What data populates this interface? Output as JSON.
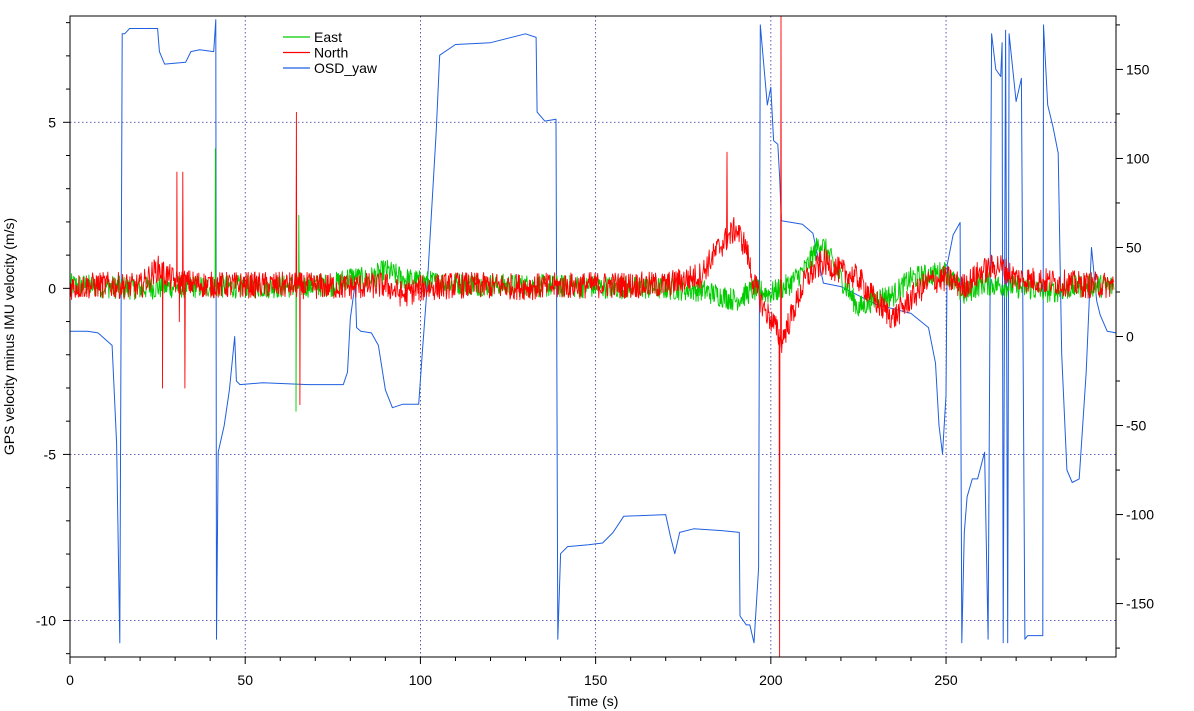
{
  "chart_data": {
    "type": "line",
    "xlabel": "Time (s)",
    "ylabel_left": "GPS velocity minus IMU velocity (m/s)",
    "xlim": [
      0,
      298.5
    ],
    "ylim_left": [
      -11.1,
      8.2
    ],
    "ylim_right": [
      -180,
      180
    ],
    "x_ticks": [
      0,
      50,
      100,
      150,
      200,
      250
    ],
    "y_left_ticks": [
      -10,
      -5,
      0,
      5
    ],
    "y_right_ticks": [
      -150,
      -100,
      -50,
      0,
      50,
      100,
      150
    ],
    "grid": "dotted",
    "legend_position": "top-left",
    "colors": {
      "East": "#00cc00",
      "North": "#ff0000",
      "OSD_yaw": "#1f5fe0"
    },
    "series": [
      {
        "name": "East",
        "axis": "left",
        "noise_amplitude": 0.35,
        "points": [
          [
            0,
            0.1
          ],
          [
            10,
            0.05
          ],
          [
            20,
            0.0
          ],
          [
            30,
            0.05
          ],
          [
            40,
            0.05
          ],
          [
            60,
            0.05
          ],
          [
            75,
            0.1
          ],
          [
            80,
            0.35
          ],
          [
            85,
            0.25
          ],
          [
            90,
            0.55
          ],
          [
            95,
            0.3
          ],
          [
            100,
            0.2
          ],
          [
            120,
            0.1
          ],
          [
            150,
            0.05
          ],
          [
            170,
            0.0
          ],
          [
            180,
            -0.05
          ],
          [
            190,
            -0.35
          ],
          [
            195,
            -0.05
          ],
          [
            200,
            -0.15
          ],
          [
            205,
            0.1
          ],
          [
            210,
            0.6
          ],
          [
            214,
            1.4
          ],
          [
            216,
            1.1
          ],
          [
            220,
            0.3
          ],
          [
            225,
            -0.6
          ],
          [
            230,
            -0.3
          ],
          [
            235,
            -0.2
          ],
          [
            240,
            0.3
          ],
          [
            245,
            0.4
          ],
          [
            250,
            0.5
          ],
          [
            255,
            -0.2
          ],
          [
            260,
            0.15
          ],
          [
            270,
            0.05
          ],
          [
            280,
            -0.1
          ],
          [
            290,
            0.1
          ],
          [
            298,
            0.05
          ]
        ],
        "spikes": [
          [
            41.5,
            4.2
          ],
          [
            64.5,
            -3.7
          ],
          [
            65.3,
            2.2
          ]
        ]
      },
      {
        "name": "North",
        "axis": "left",
        "noise_amplitude": 0.4,
        "points": [
          [
            0,
            0.05
          ],
          [
            10,
            0.1
          ],
          [
            20,
            0.05
          ],
          [
            25,
            0.6
          ],
          [
            30,
            0.2
          ],
          [
            40,
            0.1
          ],
          [
            60,
            0.1
          ],
          [
            80,
            0.05
          ],
          [
            90,
            0.1
          ],
          [
            95,
            -0.2
          ],
          [
            100,
            0.0
          ],
          [
            110,
            0.1
          ],
          [
            130,
            0.05
          ],
          [
            150,
            0.1
          ],
          [
            170,
            0.1
          ],
          [
            180,
            0.4
          ],
          [
            185,
            1.2
          ],
          [
            190,
            1.8
          ],
          [
            193,
            1.2
          ],
          [
            195,
            0.2
          ],
          [
            198,
            -0.6
          ],
          [
            201,
            -1.1
          ],
          [
            203,
            -1.6
          ],
          [
            206,
            -0.8
          ],
          [
            210,
            0.3
          ],
          [
            215,
            0.8
          ],
          [
            220,
            0.5
          ],
          [
            225,
            0.3
          ],
          [
            230,
            -0.4
          ],
          [
            235,
            -0.9
          ],
          [
            240,
            -0.3
          ],
          [
            245,
            0.2
          ],
          [
            250,
            0.3
          ],
          [
            255,
            0.05
          ],
          [
            260,
            0.5
          ],
          [
            265,
            0.7
          ],
          [
            270,
            0.3
          ],
          [
            280,
            0.2
          ],
          [
            290,
            0.1
          ],
          [
            298,
            0.1
          ]
        ],
        "spikes": [
          [
            26.4,
            -3.0
          ],
          [
            30.5,
            3.5
          ],
          [
            31.2,
            -1.0
          ],
          [
            32.2,
            3.5
          ],
          [
            32.8,
            -3.0
          ],
          [
            64.6,
            5.3
          ],
          [
            65.6,
            -3.5
          ],
          [
            187.5,
            4.1
          ],
          [
            202.5,
            -11.1
          ],
          [
            202.9,
            8.2
          ]
        ]
      },
      {
        "name": "OSD_yaw",
        "axis": "right",
        "points": [
          [
            0,
            3
          ],
          [
            5,
            3
          ],
          [
            8,
            2
          ],
          [
            12,
            -5
          ],
          [
            13.3,
            -60
          ],
          [
            14.2,
            -172
          ],
          [
            14.9,
            170
          ],
          [
            15.6,
            170
          ],
          [
            17,
            173
          ],
          [
            25,
            173
          ],
          [
            25.5,
            160
          ],
          [
            27,
            153
          ],
          [
            33,
            154
          ],
          [
            34.5,
            160
          ],
          [
            37,
            161
          ],
          [
            41,
            160
          ],
          [
            41.6,
            178
          ],
          [
            41.8,
            -170
          ],
          [
            42.3,
            -65
          ],
          [
            44,
            -50
          ],
          [
            45.5,
            -30
          ],
          [
            47,
            0
          ],
          [
            47.5,
            -25
          ],
          [
            48.5,
            -27
          ],
          [
            55,
            -26
          ],
          [
            68,
            -27
          ],
          [
            78,
            -27
          ],
          [
            79.2,
            -20
          ],
          [
            80,
            10
          ],
          [
            81.4,
            30
          ],
          [
            81.8,
            5
          ],
          [
            83,
            3
          ],
          [
            86,
            2
          ],
          [
            88,
            -5
          ],
          [
            90,
            -30
          ],
          [
            92,
            -40
          ],
          [
            95,
            -38
          ],
          [
            99.5,
            -38
          ],
          [
            100.5,
            -10
          ],
          [
            102,
            30
          ],
          [
            104.5,
            115
          ],
          [
            105.5,
            158
          ],
          [
            110,
            164
          ],
          [
            120,
            165
          ],
          [
            130,
            170
          ],
          [
            133,
            168
          ],
          [
            133.3,
            126
          ],
          [
            135.5,
            121
          ],
          [
            138.7,
            122
          ],
          [
            139.2,
            -170
          ],
          [
            140,
            -122
          ],
          [
            142,
            -118
          ],
          [
            148,
            -117
          ],
          [
            152,
            -116
          ],
          [
            155,
            -110
          ],
          [
            158,
            -101
          ],
          [
            170,
            -100
          ],
          [
            171.3,
            -112
          ],
          [
            172.6,
            -122
          ],
          [
            174,
            -110
          ],
          [
            178,
            -108
          ],
          [
            186,
            -109
          ],
          [
            191,
            -110
          ],
          [
            191.2,
            -157
          ],
          [
            193,
            -162
          ],
          [
            194,
            -162
          ],
          [
            195.2,
            -172
          ],
          [
            196.5,
            -130
          ],
          [
            197,
            175
          ],
          [
            199,
            130
          ],
          [
            200,
            140
          ],
          [
            200.8,
            110
          ],
          [
            202,
            108
          ],
          [
            202.5,
            90
          ],
          [
            203,
            65
          ],
          [
            206,
            64
          ],
          [
            209,
            63
          ],
          [
            212,
            58
          ],
          [
            215,
            30
          ],
          [
            220,
            28
          ],
          [
            230,
            18
          ],
          [
            240,
            13
          ],
          [
            245,
            5
          ],
          [
            247,
            -15
          ],
          [
            248,
            -50
          ],
          [
            249,
            -66
          ],
          [
            250,
            -33
          ],
          [
            250.3,
            40
          ],
          [
            252,
            57
          ],
          [
            254,
            64
          ],
          [
            254.5,
            -172
          ],
          [
            255.2,
            -110
          ],
          [
            256,
            -90
          ],
          [
            257.5,
            -80
          ],
          [
            259,
            -80
          ],
          [
            261,
            -65
          ],
          [
            262,
            -170
          ],
          [
            263,
            170
          ],
          [
            264.2,
            150
          ],
          [
            265.6,
            146
          ],
          [
            266,
            165
          ],
          [
            266.3,
            -172
          ],
          [
            267,
            172
          ],
          [
            267.6,
            -172
          ],
          [
            268,
            170
          ],
          [
            270,
            132
          ],
          [
            271.5,
            145
          ],
          [
            272.5,
            -170
          ],
          [
            273.3,
            -168
          ],
          [
            276,
            -168
          ],
          [
            277.6,
            -168
          ],
          [
            277.8,
            175
          ],
          [
            279,
            130
          ],
          [
            280.5,
            118
          ],
          [
            282,
            103
          ],
          [
            283,
            -10
          ],
          [
            284.5,
            -75
          ],
          [
            286,
            -82
          ],
          [
            288,
            -80
          ],
          [
            290,
            -20
          ],
          [
            291.5,
            50
          ],
          [
            293,
            20
          ],
          [
            294,
            12
          ],
          [
            296,
            3
          ],
          [
            298.5,
            2
          ]
        ]
      }
    ]
  }
}
